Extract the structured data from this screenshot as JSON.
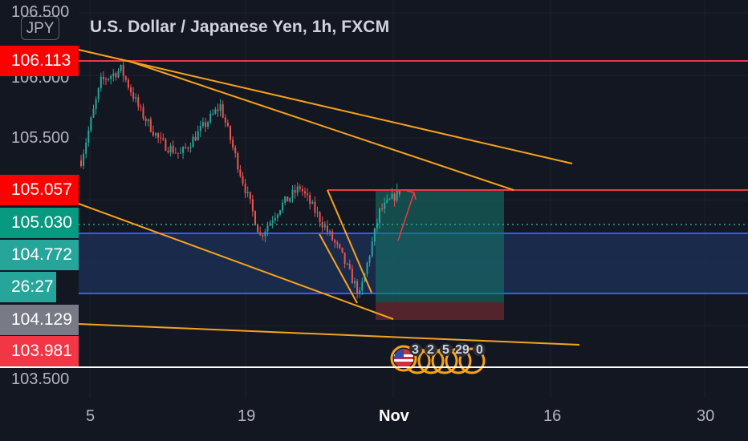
{
  "header": {
    "title": "U.S. Dollar / Japanese Yen, 1h, FXCM",
    "currency_badge": "JPY"
  },
  "price_axis": {
    "labels": [
      "106.500",
      "106.000",
      "105.500",
      "103.500"
    ]
  },
  "price_tags": {
    "level_top": "106.113",
    "level_target": "105.057",
    "current_price": "105.030",
    "box_top": "104.772",
    "countdown": "26:27",
    "box_bottom": "104.129",
    "low": "103.981"
  },
  "time_axis": {
    "labels": [
      "5",
      "19",
      "Nov",
      "16",
      "30"
    ]
  },
  "events": {
    "counts": [
      "3",
      "2",
      "5",
      "29",
      "0"
    ]
  },
  "colors": {
    "background": "#131722",
    "red_line": "#f23645",
    "trendline": "#f7a31c",
    "zone_line": "#2962ff",
    "zone_fill": "#1c2e52",
    "position_profit": "#16786e",
    "position_loss": "#6a2a30",
    "candle_up": "#26a69a",
    "candle_down": "#ef5350",
    "tag_green": "#26a69a",
    "tag_gray": "#787b86",
    "tag_red": "#f23645"
  },
  "chart_data": {
    "type": "candlestick",
    "symbol": "USDJPY",
    "interval": "1h",
    "source": "FXCM",
    "ylim": [
      103.35,
      106.62
    ],
    "x_ticks": [
      "5",
      "19",
      "Nov",
      "16",
      "30"
    ],
    "horizontal_levels": [
      106.113,
      105.057
    ],
    "zone": {
      "top": 104.92,
      "bottom": 104.38
    },
    "current_price": 105.03,
    "series": [
      {
        "name": "price",
        "path": [
          105.3,
          105.95,
          106.05,
          105.7,
          105.45,
          105.35,
          105.55,
          105.75,
          105.2,
          104.68,
          104.92,
          105.08,
          104.82,
          104.55,
          104.19,
          104.88,
          105.05
        ]
      }
    ]
  }
}
